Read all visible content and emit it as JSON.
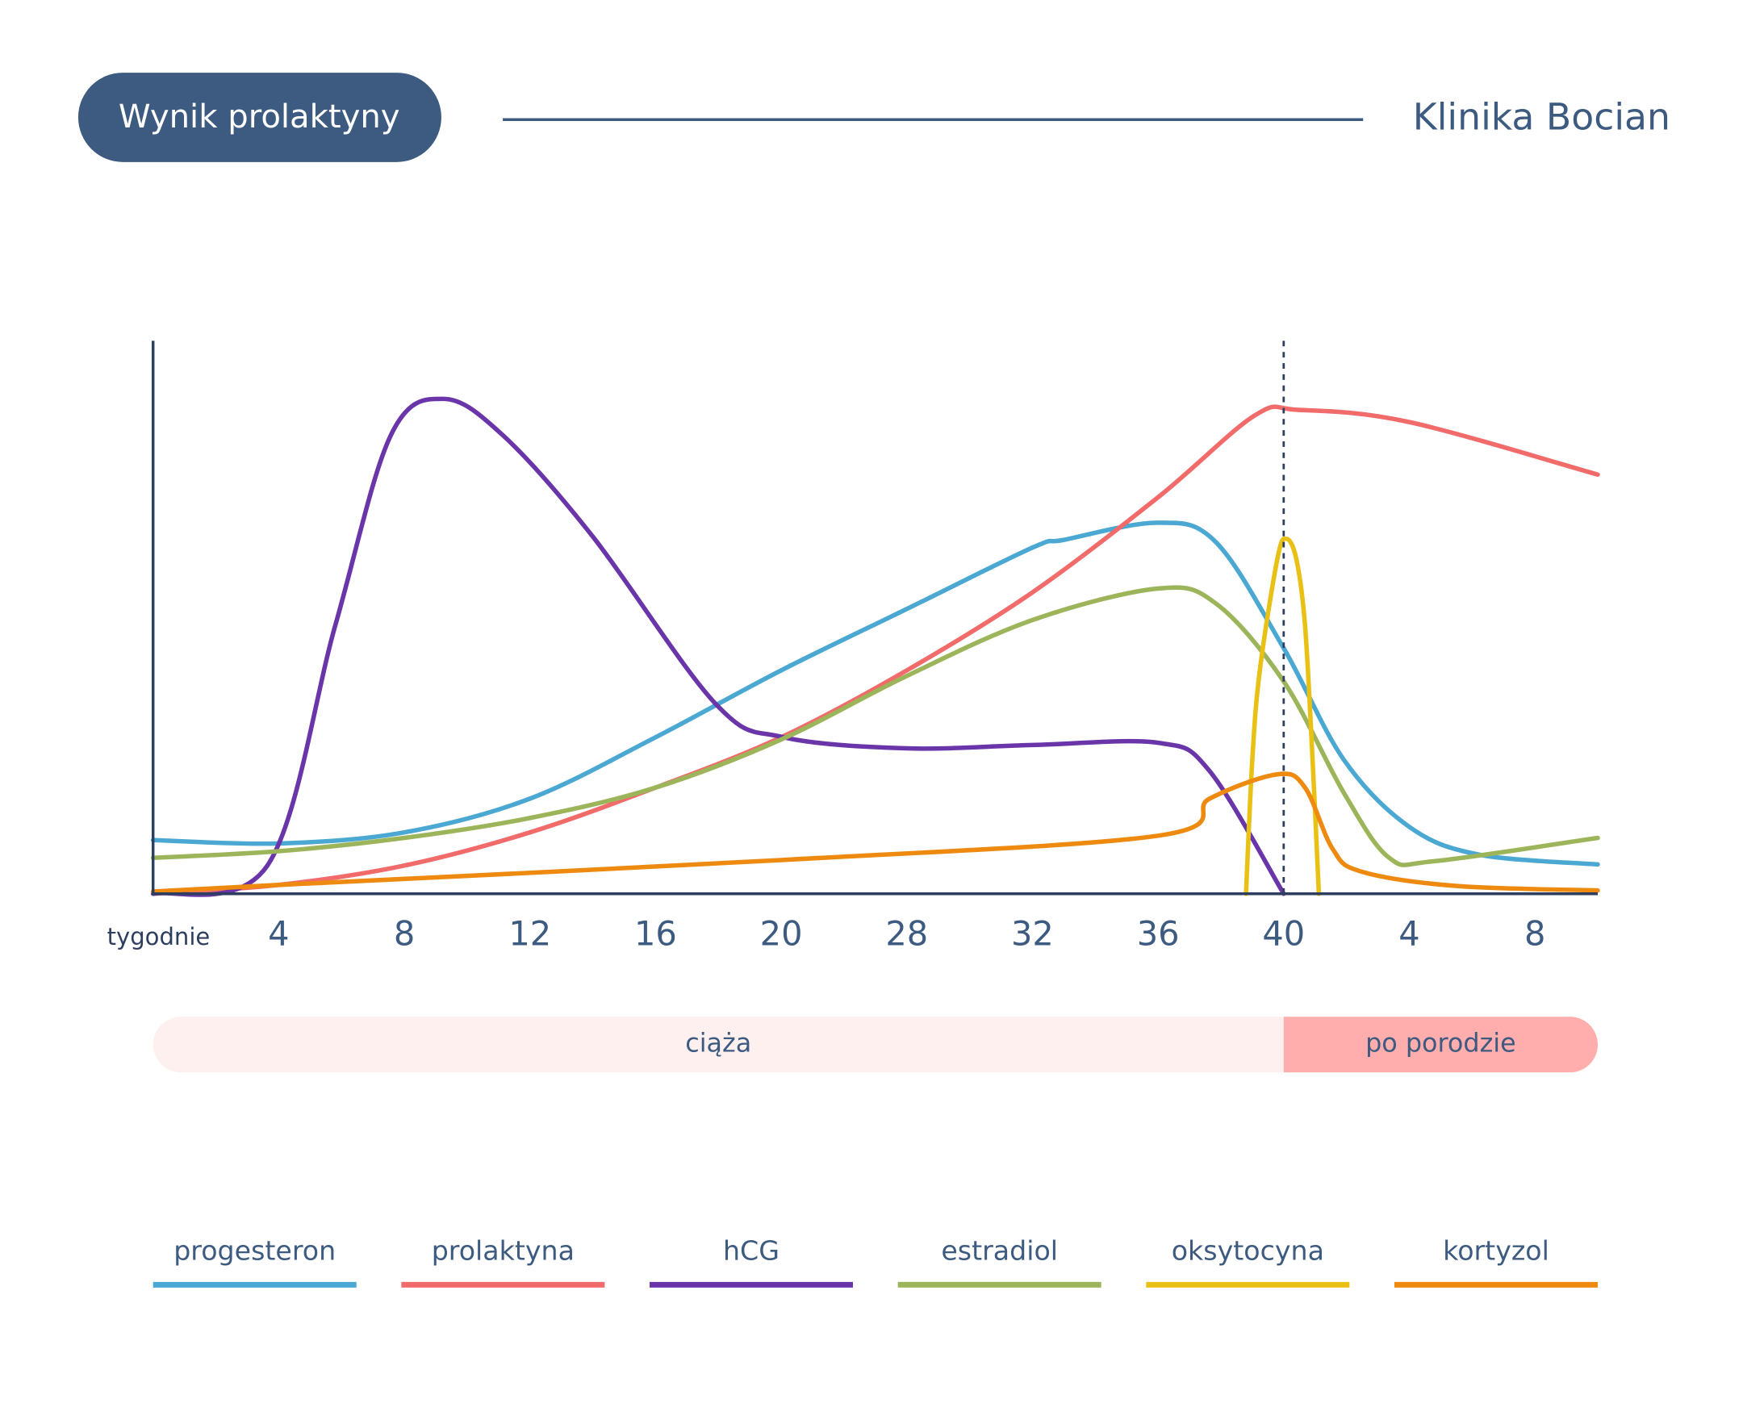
{
  "header": {
    "title": "Wynik prolaktyny",
    "brand": "Klinika Bocian"
  },
  "chart_data": {
    "type": "line",
    "xlabel": "tygodnie",
    "xlim": [
      0,
      11.5
    ],
    "ylim": [
      0,
      100
    ],
    "xticks": [
      {
        "value": 1,
        "label": "4"
      },
      {
        "value": 2,
        "label": "8"
      },
      {
        "value": 3,
        "label": "12"
      },
      {
        "value": 4,
        "label": "16"
      },
      {
        "value": 5,
        "label": "20"
      },
      {
        "value": 6,
        "label": "28"
      },
      {
        "value": 7,
        "label": "32"
      },
      {
        "value": 8,
        "label": "36"
      },
      {
        "value": 9,
        "label": "40"
      },
      {
        "value": 10,
        "label": "4"
      },
      {
        "value": 11,
        "label": "8"
      }
    ],
    "marker_x": 9,
    "phases": [
      {
        "label": "ciąża",
        "from": 0,
        "to": 9,
        "color": "#fff0f0"
      },
      {
        "label": "po porodzie",
        "from": 9,
        "to": 11.5,
        "color": "#ffadad"
      }
    ],
    "series": [
      {
        "name": "progesteron",
        "color": "#4aa8d2",
        "x": [
          0,
          1,
          2,
          3,
          4,
          5,
          6,
          7,
          7.25,
          8,
          8.46,
          9,
          9.48,
          10,
          10.55,
          11.5
        ],
        "values": [
          9.7,
          9.1,
          11.1,
          17.2,
          28.3,
          40.4,
          51.5,
          62.6,
          64.0,
          67.1,
          63.6,
          44.4,
          24.2,
          12.1,
          7.1,
          5.3
        ]
      },
      {
        "name": "prolaktyna",
        "color": "#f26b6b",
        "x": [
          0,
          1,
          2,
          3,
          4,
          5,
          6,
          7,
          8,
          8.77,
          9.12,
          10,
          11.5
        ],
        "values": [
          0,
          1.6,
          5.1,
          11.1,
          19.2,
          28.3,
          40.4,
          54.5,
          71.7,
          86.5,
          87.5,
          85.3,
          75.8
        ]
      },
      {
        "name": "hCG",
        "color": "#6a35a8",
        "x": [
          0,
          0.91,
          1.45,
          1.89,
          2.31,
          2.79,
          3.5,
          4.48,
          5.02,
          6,
          7,
          8,
          8.41,
          9
        ],
        "values": [
          0,
          5.1,
          48.5,
          82.8,
          89.5,
          82.8,
          64.6,
          34.3,
          28.3,
          26.3,
          26.9,
          27.3,
          22.2,
          0
        ]
      },
      {
        "name": "estradiol",
        "color": "#9db55a",
        "x": [
          0,
          1,
          2,
          3,
          4,
          5,
          6,
          7,
          8,
          8.46,
          9,
          9.48,
          9.84,
          10.2,
          11.5
        ],
        "values": [
          6.5,
          7.7,
          10.1,
          13.7,
          19.2,
          27.9,
          39.4,
          49.5,
          55.2,
          52.5,
          38.4,
          18.2,
          6.5,
          5.9,
          10.1
        ]
      },
      {
        "name": "oksytocyna",
        "color": "#e9c114",
        "x": [
          8.7,
          8.75,
          8.81,
          8.95,
          9.02,
          9.1,
          9.17,
          9.23,
          9.28
        ],
        "values": [
          0,
          24.2,
          40.4,
          60.6,
          64.2,
          60.6,
          48.5,
          24.2,
          0
        ]
      },
      {
        "name": "kortyzol",
        "color": "#ed8a0f",
        "x": [
          0,
          1,
          5,
          8,
          8.41,
          8.95,
          9.17,
          9.39,
          9.62,
          10.38,
          11.5
        ],
        "values": [
          0.4,
          1.6,
          6.1,
          10.5,
          17.2,
          21.6,
          19.2,
          8.1,
          4.0,
          1.4,
          0.6
        ]
      }
    ]
  }
}
